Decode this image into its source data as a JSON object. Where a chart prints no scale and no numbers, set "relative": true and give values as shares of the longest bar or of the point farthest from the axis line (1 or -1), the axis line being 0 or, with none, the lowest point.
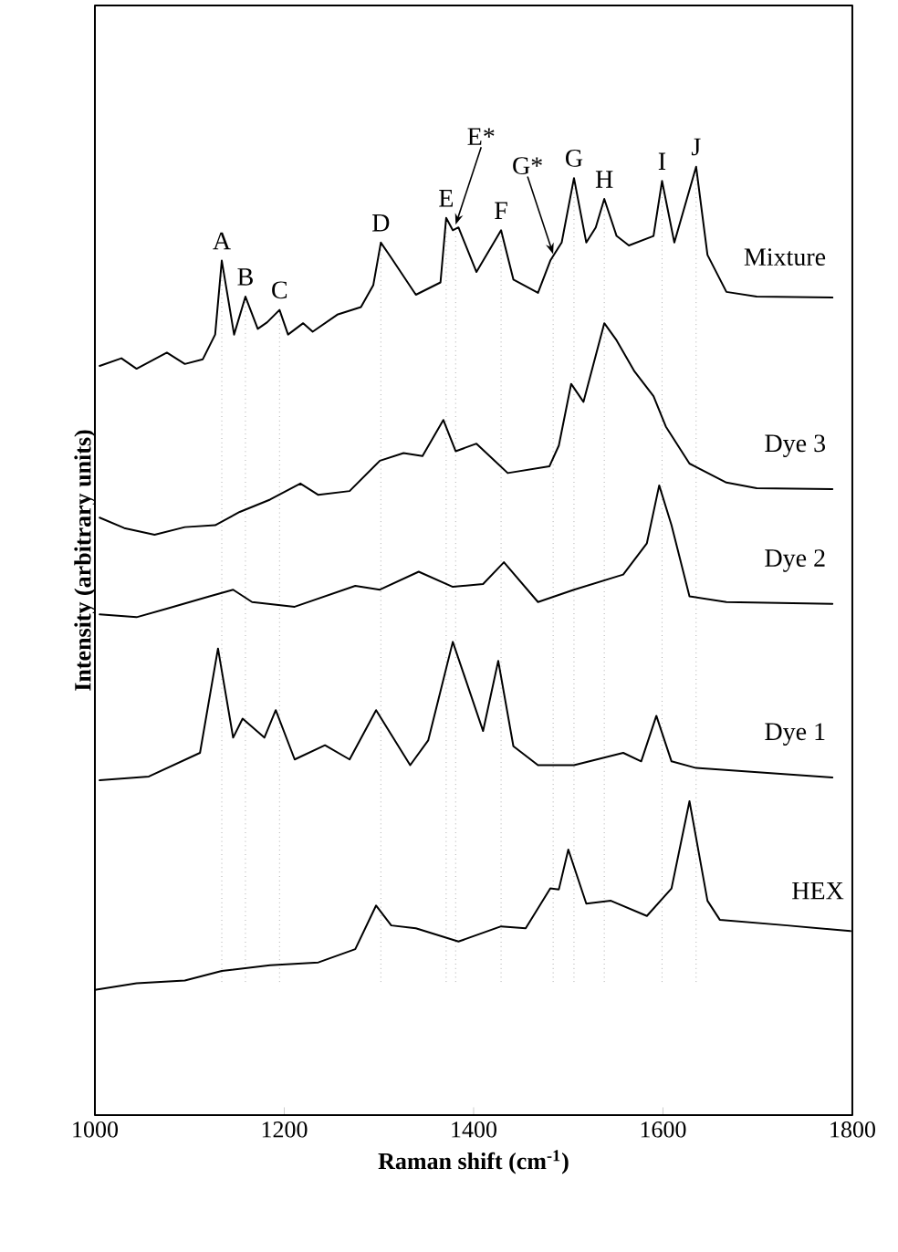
{
  "chart_data": {
    "type": "line",
    "relative": true,
    "xlabel": "Raman shift (cm$^{-1}$)",
    "ylabel": "Intensity (arbitrary units)",
    "xlim": [
      1000,
      1800
    ],
    "xticks": [
      1000,
      1200,
      1400,
      1600,
      1800
    ],
    "tick_labels": "x",
    "series": [
      {
        "name": "Mixture",
        "color": "#000000",
        "x": [
          1005,
          1028,
          1044,
          1076,
          1095,
          1114,
          1127,
          1134,
          1147,
          1159,
          1172,
          1182,
          1195,
          1204,
          1220,
          1230,
          1256,
          1281,
          1294,
          1302,
          1313,
          1339,
          1365,
          1371,
          1378,
          1384,
          1403,
          1429,
          1442,
          1468,
          1481,
          1493,
          1506,
          1519,
          1529,
          1538,
          1551,
          1564,
          1590,
          1599,
          1612,
          1635,
          1647,
          1667,
          1699,
          1779
        ],
        "values": [
          0.79,
          0.798,
          0.787,
          0.804,
          0.792,
          0.797,
          0.823,
          0.901,
          0.823,
          0.863,
          0.829,
          0.836,
          0.849,
          0.823,
          0.835,
          0.826,
          0.844,
          0.852,
          0.875,
          0.92,
          0.904,
          0.865,
          0.878,
          0.946,
          0.933,
          0.936,
          0.889,
          0.933,
          0.881,
          0.867,
          0.901,
          0.92,
          0.988,
          0.92,
          0.936,
          0.966,
          0.927,
          0.917,
          0.927,
          0.985,
          0.92,
          1.0,
          0.907,
          0.868,
          0.863,
          0.862
        ]
      },
      {
        "name": "Dye 3",
        "color": "#000000",
        "x": [
          1005,
          1031,
          1063,
          1095,
          1127,
          1153,
          1185,
          1217,
          1236,
          1269,
          1301,
          1326,
          1346,
          1368,
          1381,
          1403,
          1436,
          1480,
          1490,
          1503,
          1516,
          1538,
          1551,
          1570,
          1590,
          1603,
          1628,
          1667,
          1699,
          1779
        ],
        "values": [
          0.63,
          0.619,
          0.612,
          0.62,
          0.622,
          0.636,
          0.649,
          0.666,
          0.654,
          0.658,
          0.69,
          0.698,
          0.695,
          0.733,
          0.7,
          0.708,
          0.677,
          0.684,
          0.706,
          0.771,
          0.752,
          0.835,
          0.817,
          0.784,
          0.758,
          0.726,
          0.687,
          0.667,
          0.661,
          0.66
        ]
      },
      {
        "name": "Dye 2",
        "color": "#000000",
        "x": [
          1005,
          1044,
          1076,
          1121,
          1146,
          1166,
          1211,
          1275,
          1301,
          1342,
          1378,
          1410,
          1432,
          1468,
          1506,
          1558,
          1583,
          1596,
          1609,
          1628,
          1667,
          1779
        ],
        "values": [
          0.528,
          0.525,
          0.534,
          0.547,
          0.554,
          0.541,
          0.536,
          0.558,
          0.554,
          0.573,
          0.557,
          0.56,
          0.583,
          0.541,
          0.554,
          0.57,
          0.603,
          0.664,
          0.622,
          0.547,
          0.541,
          0.539
        ]
      },
      {
        "name": "Dye 1",
        "color": "#000000",
        "x": [
          1005,
          1057,
          1111,
          1130,
          1146,
          1156,
          1179,
          1191,
          1211,
          1243,
          1269,
          1297,
          1333,
          1352,
          1378,
          1410,
          1426,
          1442,
          1468,
          1506,
          1558,
          1577,
          1593,
          1609,
          1635,
          1779
        ],
        "values": [
          0.353,
          0.357,
          0.382,
          0.492,
          0.398,
          0.418,
          0.398,
          0.427,
          0.375,
          0.39,
          0.375,
          0.427,
          0.369,
          0.395,
          0.499,
          0.405,
          0.479,
          0.389,
          0.369,
          0.369,
          0.382,
          0.373,
          0.421,
          0.373,
          0.366,
          0.356
        ]
      },
      {
        "name": "HEX",
        "color": "#000000",
        "x": [
          1000,
          1044,
          1095,
          1134,
          1185,
          1236,
          1275,
          1297,
          1313,
          1339,
          1384,
          1429,
          1455,
          1481,
          1490,
          1500,
          1519,
          1545,
          1583,
          1609,
          1628,
          1647,
          1660,
          1731,
          1798
        ],
        "values": [
          0.132,
          0.139,
          0.142,
          0.152,
          0.158,
          0.161,
          0.175,
          0.221,
          0.2,
          0.197,
          0.183,
          0.199,
          0.197,
          0.239,
          0.238,
          0.28,
          0.223,
          0.226,
          0.21,
          0.239,
          0.331,
          0.226,
          0.206,
          0.2,
          0.194
        ]
      }
    ],
    "annotations": [
      {
        "text": "A",
        "x": 1134,
        "y": 0.901
      },
      {
        "text": "B",
        "x": 1159,
        "y": 0.863
      },
      {
        "text": "C",
        "x": 1195,
        "y": 0.849
      },
      {
        "text": "D",
        "x": 1302,
        "y": 0.92
      },
      {
        "text": "E",
        "x": 1371,
        "y": 0.946
      },
      {
        "text": "E*",
        "x": 1381,
        "y": 0.936
      },
      {
        "text": "F",
        "x": 1429,
        "y": 0.933
      },
      {
        "text": "G*",
        "x": 1484,
        "y": 0.905
      },
      {
        "text": "G",
        "x": 1506,
        "y": 0.988
      },
      {
        "text": "H",
        "x": 1538,
        "y": 0.966
      },
      {
        "text": "I",
        "x": 1599,
        "y": 0.985
      },
      {
        "text": "J",
        "x": 1635,
        "y": 1.0
      }
    ],
    "ref_lines": [
      {
        "axis": "x",
        "value": 1134
      },
      {
        "axis": "x",
        "value": 1159
      },
      {
        "axis": "x",
        "value": 1195
      },
      {
        "axis": "x",
        "value": 1302
      },
      {
        "axis": "x",
        "value": 1371
      },
      {
        "axis": "x",
        "value": 1381
      },
      {
        "axis": "x",
        "value": 1429
      },
      {
        "axis": "x",
        "value": 1484
      },
      {
        "axis": "x",
        "value": 1506
      },
      {
        "axis": "x",
        "value": 1538
      },
      {
        "axis": "x",
        "value": 1599
      },
      {
        "axis": "x",
        "value": 1635
      }
    ]
  }
}
